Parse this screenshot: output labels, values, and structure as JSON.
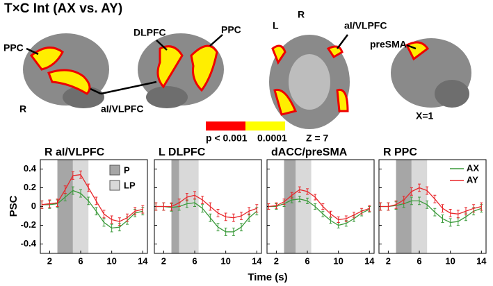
{
  "figure": {
    "title": "T×C Int (AX vs. AY)",
    "brain_labels": [
      "PPC",
      "R",
      "DLPFC",
      "PPC",
      "aI/VLPFC",
      "L",
      "R",
      "aI/VLPFC",
      "preSMA",
      "Z = 7",
      "X=1"
    ],
    "colorbar_labels": [
      "p < 0.001",
      "0.0001"
    ],
    "x_label": "Time (s)",
    "y_label": "PSC"
  },
  "chart_data": [
    {
      "type": "line",
      "title": "R aI/VLPFC",
      "x": [
        1,
        2,
        3,
        4,
        5,
        6,
        7,
        8,
        9,
        10,
        11,
        12,
        13,
        14
      ],
      "xlim": [
        0.8,
        14.6
      ],
      "xticks": [
        2,
        6,
        10,
        14
      ],
      "ylim": [
        -0.5,
        0.5
      ],
      "yticks": [
        -0.4,
        -0.2,
        0,
        0.2,
        0.4
      ],
      "bands": [
        {
          "name": "P",
          "range": [
            3,
            5
          ],
          "color": "#a6a6a6"
        },
        {
          "name": "LP",
          "range": [
            5,
            7
          ],
          "color": "#d9d9d9"
        }
      ],
      "series": [
        {
          "color": "#3a9a3a",
          "error": 0.04,
          "values": [
            0.02,
            0.02,
            0.03,
            0.1,
            0.17,
            0.14,
            0.06,
            -0.05,
            -0.17,
            -0.23,
            -0.22,
            -0.15,
            -0.07,
            -0.05
          ]
        },
        {
          "color": "#e8262a",
          "error": 0.04,
          "values": [
            0.02,
            0.03,
            0.04,
            0.18,
            0.33,
            0.34,
            0.2,
            0.06,
            -0.08,
            -0.14,
            -0.16,
            -0.12,
            -0.05,
            -0.03
          ]
        }
      ]
    },
    {
      "type": "line",
      "title": "L DLPFC",
      "x": [
        1,
        2,
        3,
        4,
        5,
        6,
        7,
        8,
        9,
        10,
        11,
        12,
        13,
        14
      ],
      "xlim": [
        0.8,
        14.6
      ],
      "xticks": [
        2,
        6,
        10,
        14
      ],
      "ylim": [
        -0.5,
        0.5
      ],
      "bands": [
        {
          "range": [
            3,
            4
          ],
          "color": "#a6a6a6"
        },
        {
          "range": [
            4,
            6.5
          ],
          "color": "#d9d9d9"
        }
      ],
      "series": [
        {
          "color": "#3a9a3a",
          "error": 0.04,
          "values": [
            0,
            0,
            -0.01,
            0,
            0.03,
            0.04,
            -0.02,
            -0.12,
            -0.22,
            -0.27,
            -0.27,
            -0.22,
            -0.12,
            -0.05
          ]
        },
        {
          "color": "#e8262a",
          "error": 0.04,
          "values": [
            0,
            0,
            0,
            0.04,
            0.1,
            0.12,
            0.07,
            0,
            -0.07,
            -0.11,
            -0.12,
            -0.1,
            -0.05,
            -0.02
          ]
        }
      ]
    },
    {
      "type": "line",
      "title": "dACC/preSMA",
      "x": [
        1,
        2,
        3,
        4,
        5,
        6,
        7,
        8,
        9,
        10,
        11,
        12,
        13,
        14
      ],
      "xlim": [
        0.8,
        14.6
      ],
      "xticks": [
        2,
        6,
        10,
        14
      ],
      "ylim": [
        -0.5,
        0.5
      ],
      "bands": [
        {
          "range": [
            3,
            4.5
          ],
          "color": "#a6a6a6"
        },
        {
          "range": [
            4.5,
            6.5
          ],
          "color": "#d9d9d9"
        }
      ],
      "series": [
        {
          "color": "#3a9a3a",
          "error": 0.03,
          "values": [
            0,
            0,
            0.03,
            0.07,
            0.08,
            0.06,
            0,
            -0.08,
            -0.15,
            -0.2,
            -0.18,
            -0.13,
            -0.07,
            -0.03
          ]
        },
        {
          "color": "#e8262a",
          "error": 0.03,
          "values": [
            0,
            0.01,
            0.05,
            0.12,
            0.18,
            0.16,
            0.1,
            0,
            -0.08,
            -0.14,
            -0.13,
            -0.09,
            -0.05,
            -0.02
          ]
        }
      ]
    },
    {
      "type": "line",
      "title": "R PPC",
      "x": [
        1,
        2,
        3,
        4,
        5,
        6,
        7,
        8,
        9,
        10,
        11,
        12,
        13,
        14
      ],
      "xlim": [
        0.8,
        14.6
      ],
      "xticks": [
        2,
        6,
        10,
        14
      ],
      "ylim": [
        -0.5,
        0.5
      ],
      "legend": "upper right",
      "bands": [
        {
          "range": [
            3,
            5
          ],
          "color": "#a6a6a6"
        },
        {
          "range": [
            5,
            7
          ],
          "color": "#d9d9d9"
        }
      ],
      "series": [
        {
          "name": "AX",
          "color": "#3a9a3a",
          "error": 0.04,
          "values": [
            0,
            0,
            0.01,
            0.03,
            0.06,
            0.06,
            0.02,
            -0.06,
            -0.13,
            -0.17,
            -0.16,
            -0.11,
            -0.05,
            -0.02
          ]
        },
        {
          "name": "AY",
          "color": "#e8262a",
          "error": 0.04,
          "values": [
            0,
            0,
            0.02,
            0.07,
            0.16,
            0.2,
            0.17,
            0.08,
            -0.02,
            -0.07,
            -0.08,
            -0.05,
            -0.02,
            0
          ]
        }
      ]
    }
  ]
}
